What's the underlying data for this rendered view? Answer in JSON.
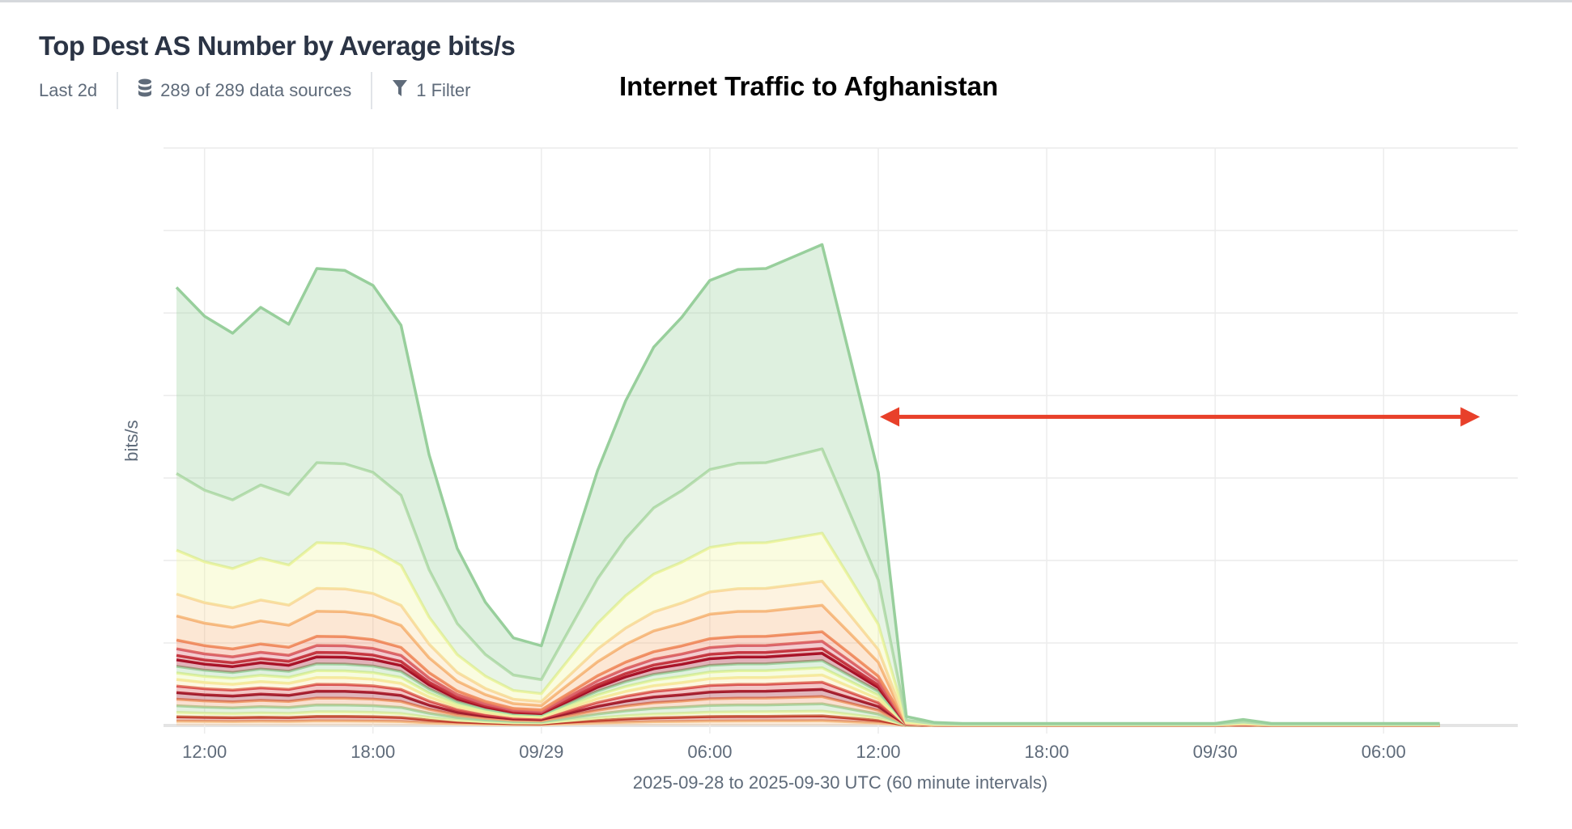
{
  "header": {
    "title": "Top Dest AS Number by Average bits/s",
    "time_range": "Last 2d",
    "data_sources": "289 of 289 data sources",
    "filters": "1 Filter",
    "data_sources_icon": "database-icon",
    "filter_icon": "funnel-icon"
  },
  "chart_data": {
    "type": "area",
    "stacked": true,
    "title": "Internet Traffic to Afghanistan",
    "xlabel": "2025-09-28 to 2025-09-30 UTC (60 minute intervals)",
    "ylabel": "bits/s",
    "x_start": "2025-09-28 11:00",
    "x_interval_hours": 1,
    "x_tick_labels": [
      "12:00",
      "18:00",
      "09/29",
      "06:00",
      "12:00",
      "18:00",
      "09/30",
      "06:00"
    ],
    "x_tick_hours": [
      1,
      7,
      13,
      19,
      25,
      31,
      37,
      43
    ],
    "x_range_hours": [
      -0.5,
      46
    ],
    "ylim": [
      0,
      580
    ],
    "y_gridlines": 8,
    "grid": true,
    "total_values": [
      440,
      411,
      394,
      420,
      403,
      459,
      457,
      442,
      402,
      272,
      178,
      124,
      88,
      80,
      168,
      256,
      326,
      380,
      410,
      447,
      458,
      459,
      471,
      483,
      369,
      254,
      9,
      3,
      2,
      2,
      2,
      2,
      2,
      2,
      2,
      2,
      2,
      2,
      6,
      2,
      2,
      2,
      2,
      2,
      2,
      2
    ],
    "series": [
      {
        "cum_share": 0.01,
        "color": "#f6c28b"
      },
      {
        "cum_share": 0.02,
        "color": "#c0392b"
      },
      {
        "cum_share": 0.03,
        "color": "#e9f3a8"
      },
      {
        "cum_share": 0.045,
        "color": "#a8d5a0"
      },
      {
        "cum_share": 0.06,
        "color": "#f0a070"
      },
      {
        "cum_share": 0.075,
        "color": "#9e1a2c"
      },
      {
        "cum_share": 0.09,
        "color": "#d94f4f"
      },
      {
        "cum_share": 0.105,
        "color": "#f9e79f"
      },
      {
        "cum_share": 0.12,
        "color": "#e6f5a0"
      },
      {
        "cum_share": 0.135,
        "color": "#9fd3a0"
      },
      {
        "cum_share": 0.15,
        "color": "#a50f26"
      },
      {
        "cum_share": 0.16,
        "color": "#c2303a"
      },
      {
        "cum_share": 0.175,
        "color": "#d9606a"
      },
      {
        "cum_share": 0.195,
        "color": "#ef8860"
      },
      {
        "cum_share": 0.25,
        "color": "#f6b47a"
      },
      {
        "cum_share": 0.3,
        "color": "#fad9a0"
      },
      {
        "cum_share": 0.4,
        "color": "#eef5a0"
      },
      {
        "cum_share": 0.575,
        "color": "#b9deb0"
      },
      {
        "cum_share": 1.0,
        "color": "#98cf9c"
      }
    ],
    "annotation": {
      "type": "double-arrow",
      "from_hour": 25,
      "to_hour": 46,
      "value": 310,
      "color": "#e8402a"
    }
  }
}
